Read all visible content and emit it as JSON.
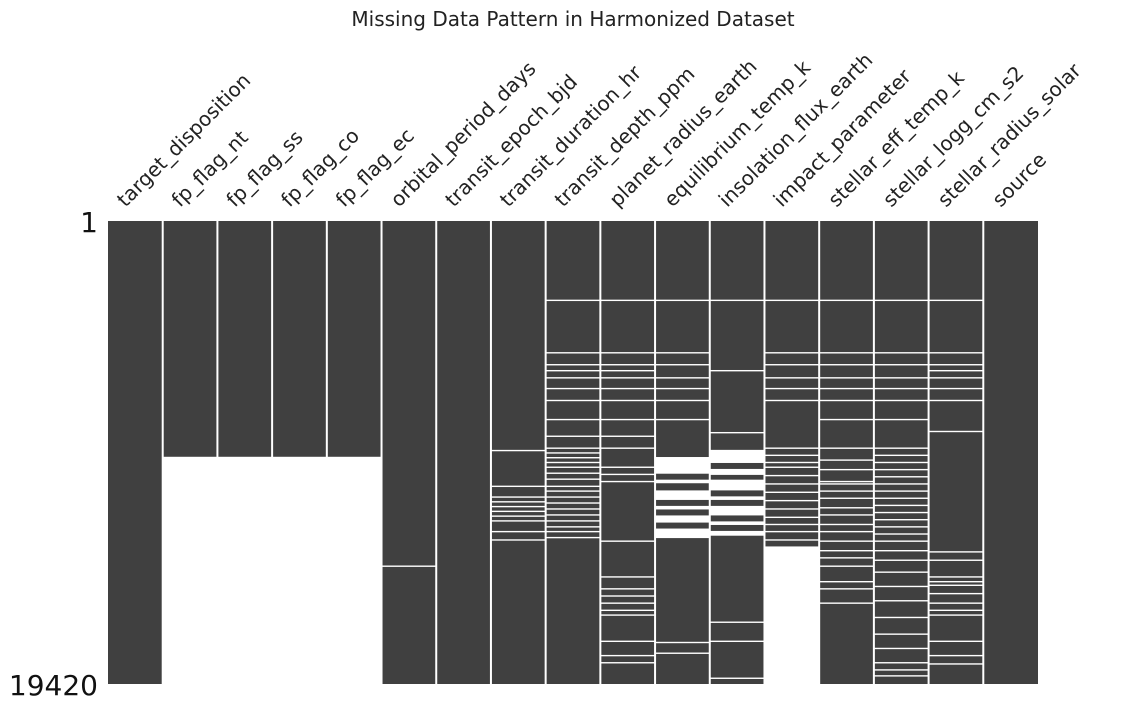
{
  "chart_data": {
    "type": "heatmap",
    "title": "Missing Data Pattern in Harmonized Dataset",
    "row_range": [
      1,
      19420
    ],
    "row_tick_labels": [
      "1",
      "19420"
    ],
    "present_color": "#404040",
    "missing_color": "#ffffff",
    "columns": [
      {
        "name": "target_disposition",
        "missing": []
      },
      {
        "name": "fp_flag_nt",
        "missing": [
          [
            9890,
            19420
          ]
        ]
      },
      {
        "name": "fp_flag_ss",
        "missing": [
          [
            9890,
            19420
          ]
        ]
      },
      {
        "name": "fp_flag_co",
        "missing": [
          [
            9890,
            19420
          ]
        ]
      },
      {
        "name": "fp_flag_ec",
        "missing": [
          [
            9890,
            19420
          ]
        ]
      },
      {
        "name": "orbital_period_days",
        "missing": [
          [
            14450,
            14500
          ]
        ]
      },
      {
        "name": "transit_epoch_bjd",
        "missing": []
      },
      {
        "name": "transit_duration_hr",
        "missing": [
          [
            9600,
            9650
          ],
          [
            11100,
            11150
          ],
          [
            11550,
            11590
          ],
          [
            11750,
            11800
          ],
          [
            11950,
            12000
          ],
          [
            12150,
            12190
          ],
          [
            12350,
            12400
          ],
          [
            12550,
            12590
          ],
          [
            13000,
            13050
          ],
          [
            13350,
            13400
          ]
        ]
      },
      {
        "name": "transit_depth_ppm",
        "missing": [
          [
            3300,
            3350
          ],
          [
            5500,
            5550
          ],
          [
            6000,
            6050
          ],
          [
            6250,
            6300
          ],
          [
            6550,
            6600
          ],
          [
            7000,
            7050
          ],
          [
            7500,
            7550
          ],
          [
            8300,
            8350
          ],
          [
            9000,
            9050
          ],
          [
            9500,
            9550
          ],
          [
            9700,
            9750
          ],
          [
            9900,
            9950
          ],
          [
            10100,
            10150
          ],
          [
            10300,
            10350
          ],
          [
            10550,
            10600
          ],
          [
            10800,
            10850
          ],
          [
            11100,
            11150
          ],
          [
            11300,
            11350
          ],
          [
            11550,
            11600
          ],
          [
            11800,
            11850
          ],
          [
            12050,
            12100
          ],
          [
            12300,
            12350
          ],
          [
            12550,
            12600
          ],
          [
            12800,
            12850
          ],
          [
            13000,
            13050
          ],
          [
            13250,
            13300
          ]
        ]
      },
      {
        "name": "planet_radius_earth",
        "missing": [
          [
            3300,
            3350
          ],
          [
            5500,
            5550
          ],
          [
            6000,
            6050
          ],
          [
            6250,
            6300
          ],
          [
            6550,
            6600
          ],
          [
            7000,
            7050
          ],
          [
            7500,
            7550
          ],
          [
            8300,
            8350
          ],
          [
            9000,
            9050
          ],
          [
            9500,
            9550
          ],
          [
            10300,
            10350
          ],
          [
            10600,
            10650
          ],
          [
            10900,
            10950
          ],
          [
            13400,
            13450
          ],
          [
            14900,
            14950
          ],
          [
            15400,
            15450
          ],
          [
            15700,
            15750
          ],
          [
            16000,
            16050
          ],
          [
            16300,
            16350
          ],
          [
            16500,
            16550
          ],
          [
            17600,
            17650
          ],
          [
            18200,
            18250
          ],
          [
            18500,
            18550
          ]
        ]
      },
      {
        "name": "equilibrium_temp_k",
        "missing": [
          [
            3300,
            3350
          ],
          [
            5500,
            5550
          ],
          [
            6000,
            6050
          ],
          [
            6550,
            6600
          ],
          [
            7000,
            7050
          ],
          [
            7500,
            7550
          ],
          [
            8300,
            8350
          ],
          [
            9900,
            10600
          ],
          [
            10850,
            11000
          ],
          [
            11300,
            11700
          ],
          [
            11950,
            12100
          ],
          [
            12350,
            12650
          ],
          [
            12900,
            13300
          ],
          [
            17650,
            17700
          ],
          [
            18100,
            18150
          ]
        ]
      },
      {
        "name": "insolation_flux_earth",
        "missing": [
          [
            3300,
            3350
          ],
          [
            6250,
            6300
          ],
          [
            8850,
            8900
          ],
          [
            9600,
            10150
          ],
          [
            10400,
            10650
          ],
          [
            10850,
            11300
          ],
          [
            11550,
            11700
          ],
          [
            11950,
            12350
          ],
          [
            12600,
            12750
          ],
          [
            13000,
            13200
          ],
          [
            16800,
            16850
          ],
          [
            17600,
            17650
          ],
          [
            19150,
            19200
          ]
        ]
      },
      {
        "name": "impact_parameter",
        "missing": [
          [
            3300,
            3350
          ],
          [
            5500,
            5550
          ],
          [
            6000,
            6050
          ],
          [
            6550,
            6600
          ],
          [
            7000,
            7050
          ],
          [
            7500,
            7550
          ],
          [
            9500,
            9550
          ],
          [
            9800,
            9850
          ],
          [
            10100,
            10150
          ],
          [
            10300,
            10350
          ],
          [
            10650,
            10700
          ],
          [
            11000,
            11050
          ],
          [
            11350,
            11400
          ],
          [
            11700,
            11750
          ],
          [
            12050,
            12100
          ],
          [
            12400,
            12450
          ],
          [
            12700,
            12750
          ],
          [
            13000,
            13050
          ],
          [
            13350,
            13400
          ],
          [
            13650,
            19420
          ]
        ]
      },
      {
        "name": "stellar_eff_temp_k",
        "missing": [
          [
            3300,
            3350
          ],
          [
            5500,
            5550
          ],
          [
            6000,
            6050
          ],
          [
            6550,
            6600
          ],
          [
            7000,
            7050
          ],
          [
            7500,
            7550
          ],
          [
            8300,
            8350
          ],
          [
            9500,
            9550
          ],
          [
            10000,
            10050
          ],
          [
            10400,
            10450
          ],
          [
            10900,
            10950
          ],
          [
            11000,
            11050
          ],
          [
            11300,
            11350
          ],
          [
            11600,
            11650
          ],
          [
            12000,
            12050
          ],
          [
            12300,
            12350
          ],
          [
            12700,
            12750
          ],
          [
            13000,
            13050
          ],
          [
            13400,
            13450
          ],
          [
            13800,
            13850
          ],
          [
            14100,
            14150
          ],
          [
            14450,
            14500
          ],
          [
            15100,
            15150
          ],
          [
            15400,
            15450
          ],
          [
            16000,
            16050
          ]
        ]
      },
      {
        "name": "stellar_logg_cm_s2",
        "missing": [
          [
            3300,
            3350
          ],
          [
            5500,
            5550
          ],
          [
            6000,
            6050
          ],
          [
            6550,
            6600
          ],
          [
            7000,
            7050
          ],
          [
            7500,
            7550
          ],
          [
            8300,
            8350
          ],
          [
            9500,
            9550
          ],
          [
            9800,
            9850
          ],
          [
            10100,
            10150
          ],
          [
            10400,
            10450
          ],
          [
            10700,
            10750
          ],
          [
            11000,
            11050
          ],
          [
            11300,
            11350
          ],
          [
            11600,
            11650
          ],
          [
            11900,
            11950
          ],
          [
            12200,
            12250
          ],
          [
            12500,
            12550
          ],
          [
            12800,
            12850
          ],
          [
            13100,
            13150
          ],
          [
            13400,
            13450
          ],
          [
            13800,
            13850
          ],
          [
            14200,
            14250
          ],
          [
            14700,
            14750
          ],
          [
            15300,
            15350
          ],
          [
            15900,
            15950
          ],
          [
            16600,
            16650
          ],
          [
            17300,
            17350
          ],
          [
            17900,
            17950
          ],
          [
            18500,
            18550
          ],
          [
            18800,
            18850
          ],
          [
            19050,
            19100
          ]
        ]
      },
      {
        "name": "stellar_radius_solar",
        "missing": [
          [
            3300,
            3350
          ],
          [
            5500,
            5550
          ],
          [
            6000,
            6050
          ],
          [
            6250,
            6300
          ],
          [
            6550,
            6600
          ],
          [
            7000,
            7050
          ],
          [
            7500,
            7550
          ],
          [
            8800,
            8850
          ],
          [
            13850,
            13900
          ],
          [
            14200,
            14250
          ],
          [
            14900,
            14950
          ],
          [
            15100,
            15150
          ],
          [
            15250,
            15300
          ],
          [
            15600,
            15650
          ],
          [
            16000,
            16050
          ],
          [
            16300,
            16350
          ],
          [
            16500,
            16550
          ],
          [
            17600,
            17650
          ],
          [
            18200,
            18250
          ],
          [
            18550,
            18600
          ]
        ]
      },
      {
        "name": "source",
        "missing": []
      }
    ]
  }
}
